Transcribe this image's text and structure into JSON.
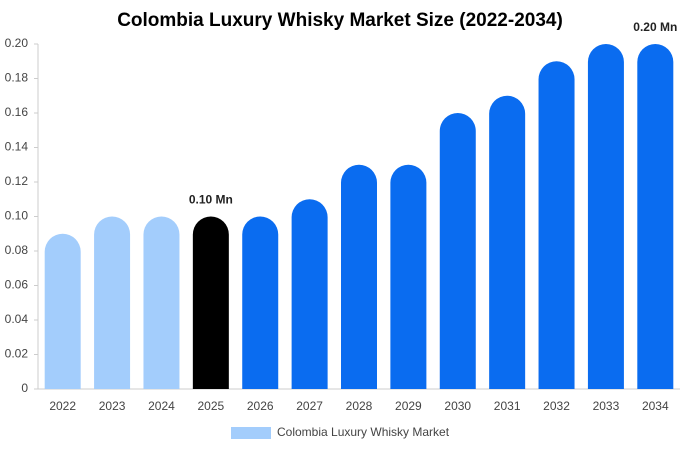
{
  "chart_data": {
    "type": "bar",
    "title": "Colombia Luxury Whisky Market Size (2022-2034)",
    "categories": [
      "2022",
      "2023",
      "2024",
      "2025",
      "2026",
      "2027",
      "2028",
      "2029",
      "2030",
      "2031",
      "2032",
      "2033",
      "2034"
    ],
    "series": [
      {
        "name": "Colombia Luxury Whisky Market",
        "color": "#a3cdfc",
        "values": [
          0.09,
          0.1,
          0.1,
          0.1,
          0.1,
          0.11,
          0.13,
          0.13,
          0.16,
          0.17,
          0.19,
          0.2,
          0.2
        ],
        "colors": [
          "#a3cdfc",
          "#a3cdfc",
          "#a3cdfc",
          "#000000",
          "#0a6cf0",
          "#0a6cf0",
          "#0a6cf0",
          "#0a6cf0",
          "#0a6cf0",
          "#0a6cf0",
          "#0a6cf0",
          "#0a6cf0",
          "#0a6cf0"
        ],
        "value_labels": [
          null,
          null,
          null,
          "0.10 Mn",
          null,
          null,
          null,
          null,
          null,
          null,
          null,
          null,
          "0.20 Mn"
        ]
      }
    ],
    "ylim": [
      0,
      0.2
    ],
    "yticks": [
      0,
      0.02,
      0.04,
      0.06,
      0.08,
      {
        "value": 0.1,
        "label": "0.10"
      },
      0.12,
      0.14,
      0.16,
      0.18,
      {
        "value": 0.2,
        "label": "0.20"
      }
    ],
    "grid": false
  }
}
